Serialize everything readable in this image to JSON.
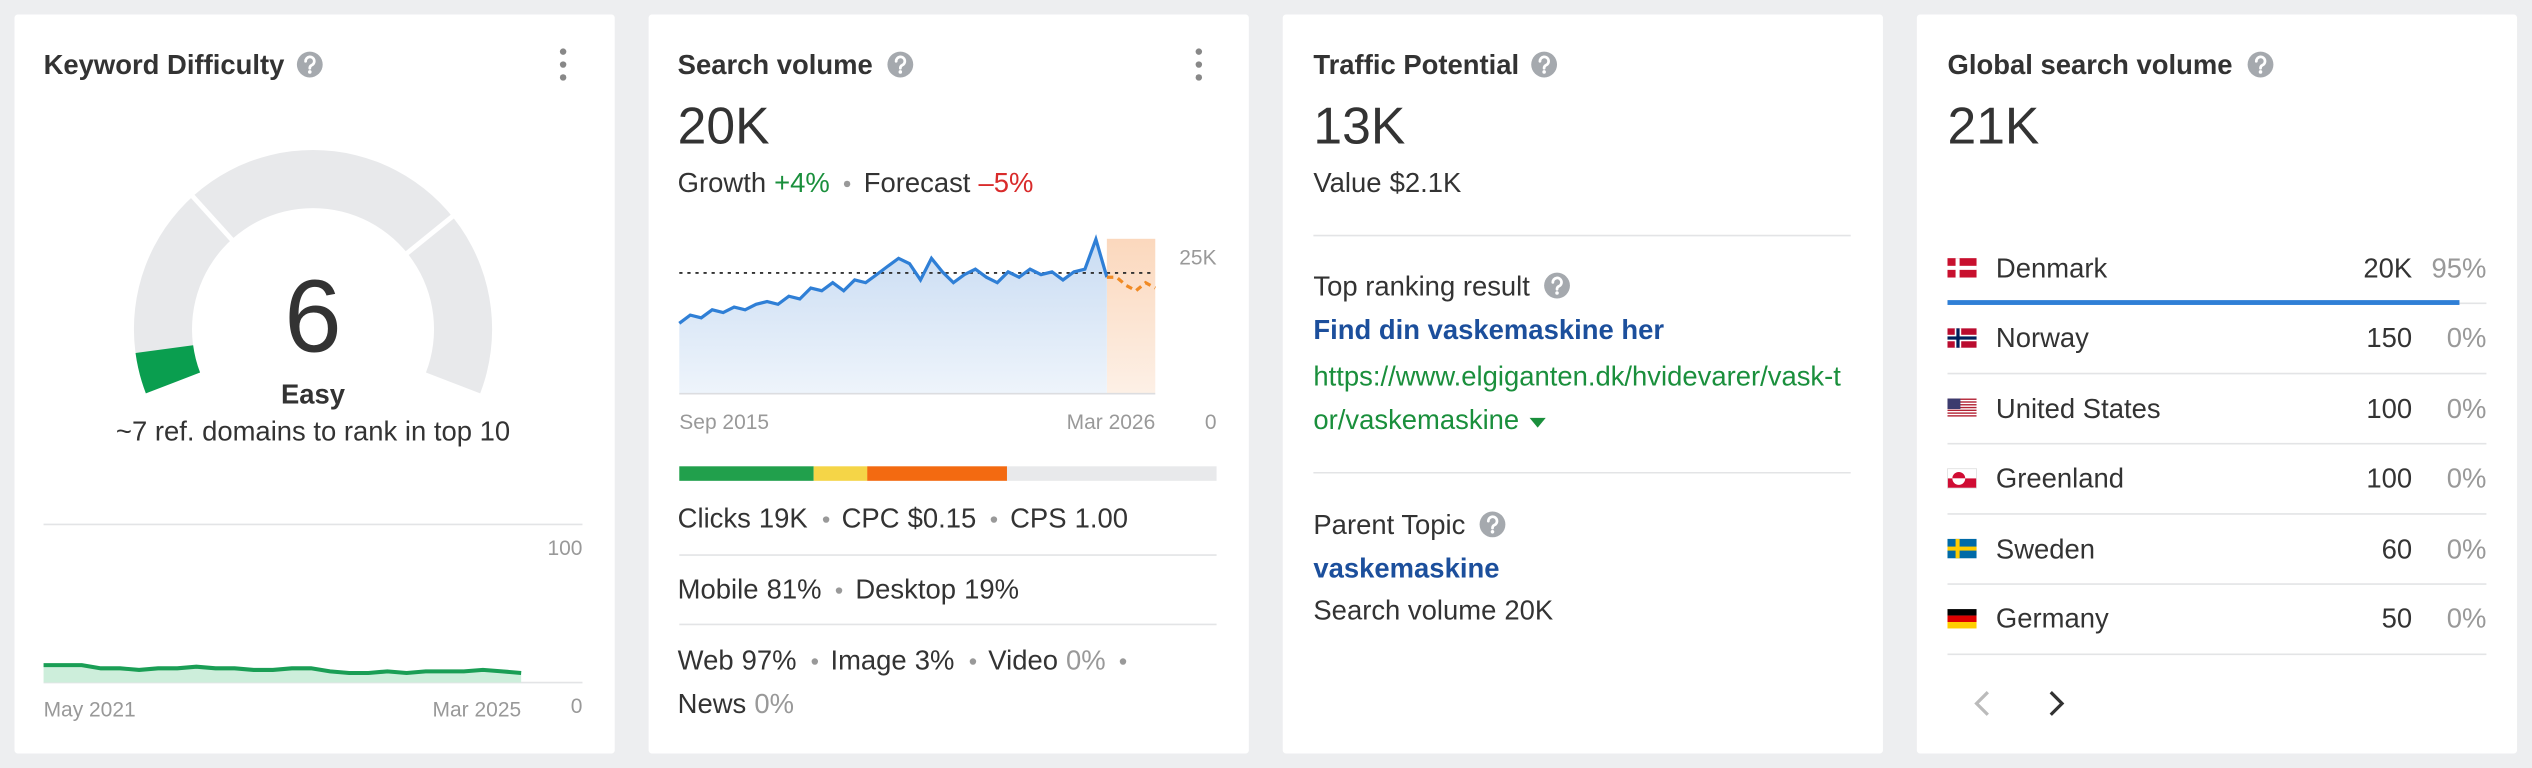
{
  "keyword_difficulty": {
    "title": "Keyword Difficulty",
    "value": 6,
    "gauge_range": [
      0,
      100
    ],
    "label": "Easy",
    "note": "~7 ref. domains to rank in top 10",
    "history": {
      "ylim": [
        0,
        100
      ],
      "yticks": [
        100,
        0
      ],
      "x_labels": [
        "May 2021",
        "Mar 2025"
      ],
      "values": [
        11,
        11,
        11,
        9,
        9,
        8,
        9,
        9,
        10,
        9,
        9,
        8,
        8,
        9,
        9,
        7,
        6,
        6,
        7,
        6,
        7,
        7,
        7,
        8,
        7,
        6
      ]
    }
  },
  "search_volume": {
    "title": "Search volume",
    "value": "20K",
    "growth": {
      "label": "Growth",
      "value": "+4%"
    },
    "forecast": {
      "label": "Forecast",
      "value": "–5%"
    },
    "chart": {
      "ylim": [
        0,
        28600
      ],
      "yticks": [
        {
          "value": 25000,
          "label": "25K"
        },
        {
          "value": 0,
          "label": "0"
        }
      ],
      "x_labels": [
        "Sep 2015",
        "Mar 2026"
      ],
      "reference_line": 22300,
      "values": [
        13000,
        14500,
        14000,
        15500,
        15000,
        16000,
        15500,
        16500,
        17000,
        16500,
        18000,
        17500,
        19500,
        19000,
        20500,
        19000,
        21000,
        20500,
        22000,
        23500,
        25000,
        24000,
        21000,
        25000,
        22500,
        20500,
        22000,
        23000,
        21500,
        20500,
        22500,
        21500,
        23000,
        22000,
        22500,
        21000,
        22500,
        23000,
        28500,
        21500
      ],
      "forecast_values": [
        21500,
        20000,
        19000,
        20500,
        19500
      ]
    },
    "intent_bar": [
      {
        "value": 25,
        "color": "#21a04c"
      },
      {
        "value": 10,
        "color": "#f5d547"
      },
      {
        "value": 26,
        "color": "#f36a11"
      },
      {
        "value": 39,
        "color": "#e8e9eb"
      }
    ],
    "metric_rows": [
      [
        {
          "label": "Clicks",
          "value": "19K"
        },
        {
          "label": "CPC",
          "value": "$0.15"
        },
        {
          "label": "CPS",
          "value": "1.00"
        }
      ],
      [
        {
          "label": "Mobile",
          "value": "81%"
        },
        {
          "label": "Desktop",
          "value": "19%"
        }
      ],
      [
        {
          "label": "Web",
          "value": "97%"
        },
        {
          "label": "Image",
          "value": "3%"
        },
        {
          "label": "Video",
          "value": "0%"
        }
      ],
      [
        {
          "label": "News",
          "value": "0%"
        }
      ]
    ]
  },
  "traffic_potential": {
    "title": "Traffic Potential",
    "value": "13K",
    "traffic_value": {
      "label": "Value",
      "value": "$2.1K"
    },
    "top_result": {
      "label": "Top ranking result",
      "title": "Find din vaskemaskine her",
      "url": "https://www.elgiganten.dk/hvidevarer/vask-tor/vaskemaskine"
    },
    "parent_topic": {
      "label": "Parent Topic",
      "topic": "vaskemaskine",
      "volume": {
        "label": "Search volume",
        "value": "20K"
      }
    }
  },
  "global_search_volume": {
    "title": "Global search volume",
    "value": "21K",
    "countries": [
      {
        "name": "Denmark",
        "volume": "20K",
        "share": 95,
        "share_label": "95%"
      },
      {
        "name": "Norway",
        "volume": "150",
        "share": 0,
        "share_label": "0%"
      },
      {
        "name": "United States",
        "volume": "100",
        "share": 0,
        "share_label": "0%"
      },
      {
        "name": "Greenland",
        "volume": "100",
        "share": 0,
        "share_label": "0%"
      },
      {
        "name": "Sweden",
        "volume": "60",
        "share": 0,
        "share_label": "0%"
      },
      {
        "name": "Germany",
        "volume": "50",
        "share": 0,
        "share_label": "0%"
      }
    ]
  }
}
